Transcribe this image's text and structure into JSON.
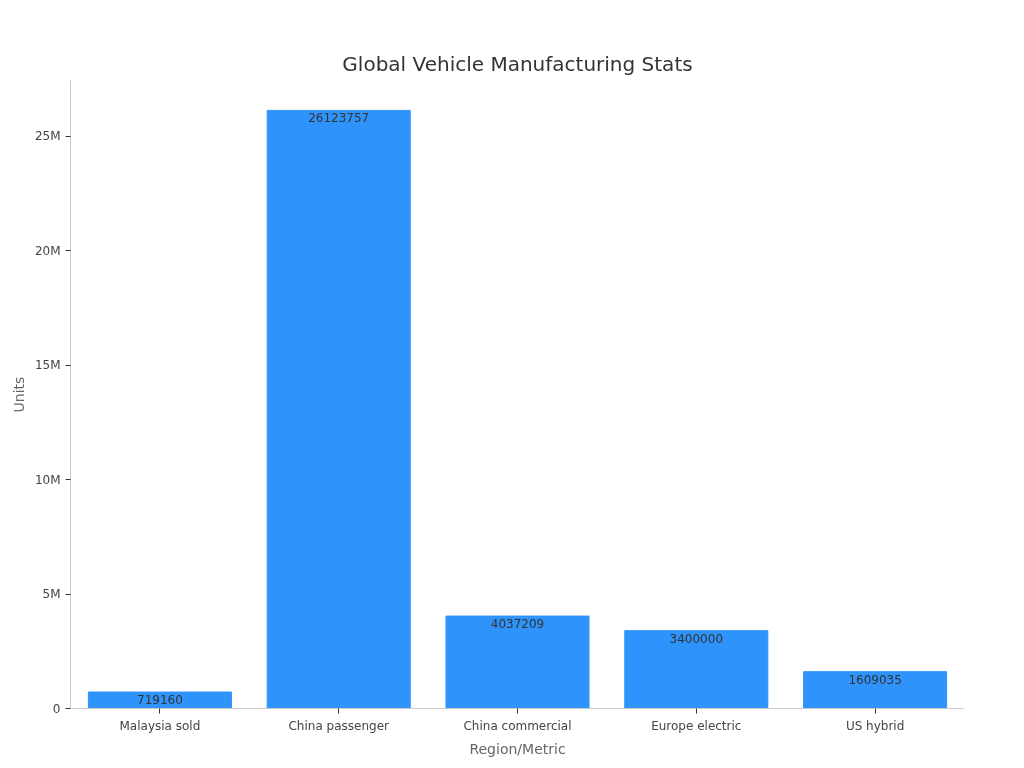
{
  "chart_data": {
    "type": "bar",
    "title": "Global Vehicle Manufacturing Stats",
    "xlabel": "Region/Metric",
    "ylabel": "Units",
    "categories": [
      "Malaysia sold",
      "China passenger",
      "China commercial",
      "Europe electric",
      "US hybrid"
    ],
    "values": [
      719160,
      26123757,
      4037209,
      3400000,
      1609035
    ],
    "color": "#2e93fa",
    "ylim": [
      0,
      27430000
    ],
    "yticks": [
      {
        "value": 0,
        "label": "0"
      },
      {
        "value": 5000000,
        "label": "5M"
      },
      {
        "value": 10000000,
        "label": "10M"
      },
      {
        "value": 15000000,
        "label": "15M"
      },
      {
        "value": 20000000,
        "label": "20M"
      },
      {
        "value": 25000000,
        "label": "25M"
      }
    ],
    "grid": false,
    "data_labels": true
  }
}
